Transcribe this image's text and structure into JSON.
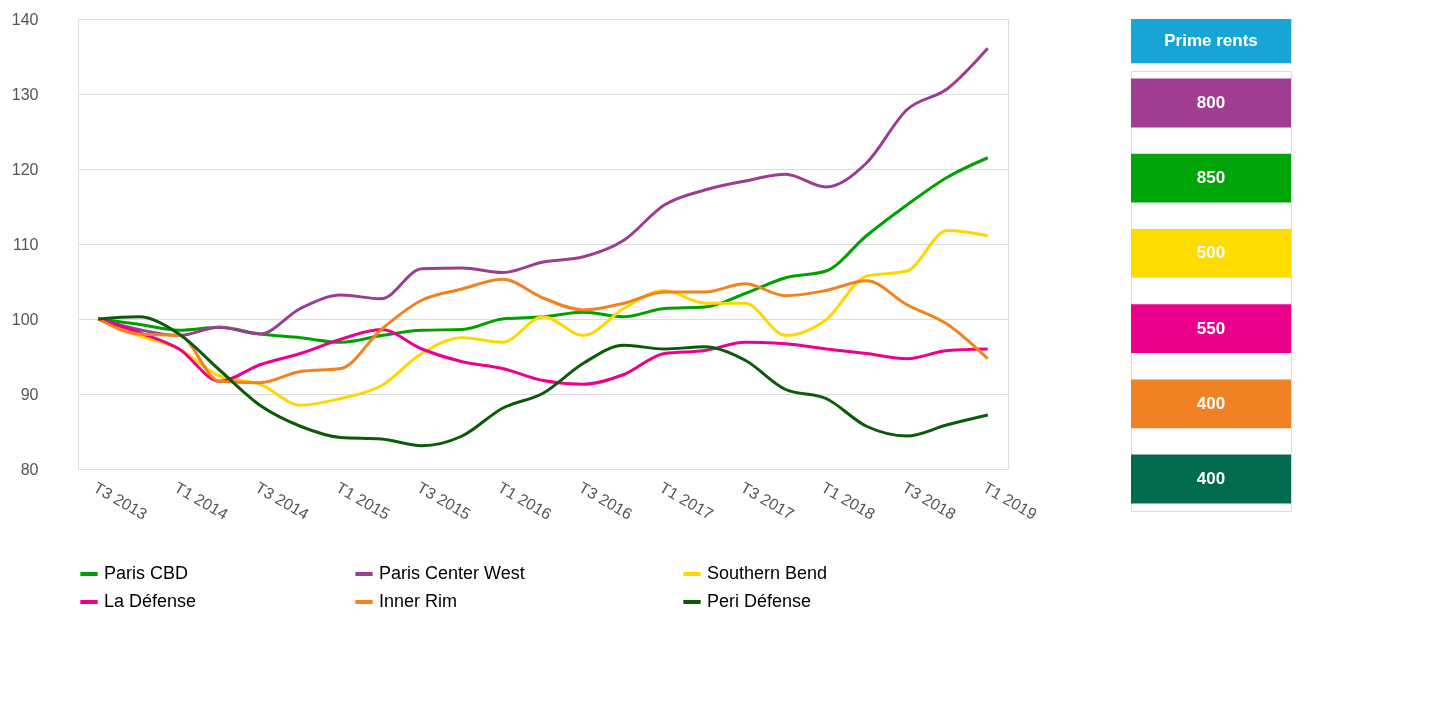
{
  "chart_data": [
    {
      "type": "line",
      "categories": [
        "T3 2013",
        null,
        "T1 2014",
        null,
        "T3 2014",
        null,
        "T1 2015",
        null,
        "T3 2015",
        null,
        "T1 2016",
        null,
        "T3 2016",
        null,
        "T1 2017",
        null,
        "T3 2017",
        null,
        "T1 2018",
        null,
        "T3 2018",
        null,
        "T1 2019"
      ],
      "series": [
        {
          "name": "Paris CBD",
          "color": "#00a000",
          "values": [
            100,
            99.3,
            98.5,
            98.9,
            98,
            97.5,
            96.9,
            97.8,
            98.5,
            98.6,
            100,
            100.3,
            100.9,
            100.3,
            101.4,
            101.6,
            103.4,
            105.5,
            106.4,
            111.1,
            115.2,
            118.9,
            121.5
          ]
        },
        {
          "name": "Paris Center West",
          "color": "#9b3d92",
          "values": [
            100,
            98.6,
            97.8,
            98.9,
            98,
            101.4,
            103.2,
            102.7,
            106.7,
            106.8,
            106.2,
            107.6,
            108.3,
            110.5,
            115.2,
            117.2,
            118.4,
            119.3,
            117.6,
            120.8,
            127.9,
            130.7,
            136.1
          ]
        },
        {
          "name": "Southern Bend",
          "color": "#ffd700",
          "values": [
            100,
            97.8,
            96,
            92.4,
            91.3,
            88.5,
            89.4,
            91.1,
            95.4,
            97.5,
            96.9,
            100.3,
            97.8,
            101.4,
            103.8,
            102.1,
            102.1,
            97.8,
            99.9,
            105.7,
            106.4,
            111.8,
            111.1
          ]
        },
        {
          "name": "La Défense",
          "color": "#ec008c",
          "values": [
            100,
            98.2,
            96,
            91.7,
            93.9,
            95.4,
            97.3,
            98.6,
            96,
            94.3,
            93.4,
            91.8,
            91.3,
            92.6,
            95.4,
            95.8,
            96.9,
            96.7,
            96,
            95.4,
            94.7,
            95.8,
            96
          ]
        },
        {
          "name": "Inner Rim",
          "color": "#f28220",
          "values": [
            100,
            98,
            97.8,
            91.7,
            91.5,
            93,
            93.4,
            98.6,
            102.5,
            104,
            105.3,
            102.8,
            101.2,
            102.1,
            103.6,
            103.6,
            104.7,
            103.1,
            103.8,
            105.1,
            101.9,
            99.3,
            94.7
          ]
        },
        {
          "name": "Peri Défense",
          "color": "#0a5a0a",
          "values": [
            100,
            100.3,
            98,
            93.2,
            88.5,
            85.7,
            84.2,
            84,
            83.1,
            84.4,
            88.1,
            90.1,
            94.1,
            96.5,
            96,
            96.3,
            94.5,
            90.6,
            89.4,
            85.7,
            84.4,
            85.9,
            87.2
          ]
        }
      ],
      "ylim": [
        80,
        140
      ],
      "yticks": [
        80,
        90,
        100,
        110,
        120,
        130,
        140
      ],
      "grid": "y",
      "legend": "bottom",
      "marker": "none",
      "line_style": "solid"
    },
    {
      "type": "other",
      "title": "Prime rents",
      "data_labels": true,
      "values": [
        800,
        850,
        500,
        550,
        400,
        400
      ],
      "colors": [
        "#a03c91",
        "#00a50a",
        "#ffdc00",
        "#eb008b",
        "#f08223",
        "#006b4f"
      ]
    }
  ]
}
